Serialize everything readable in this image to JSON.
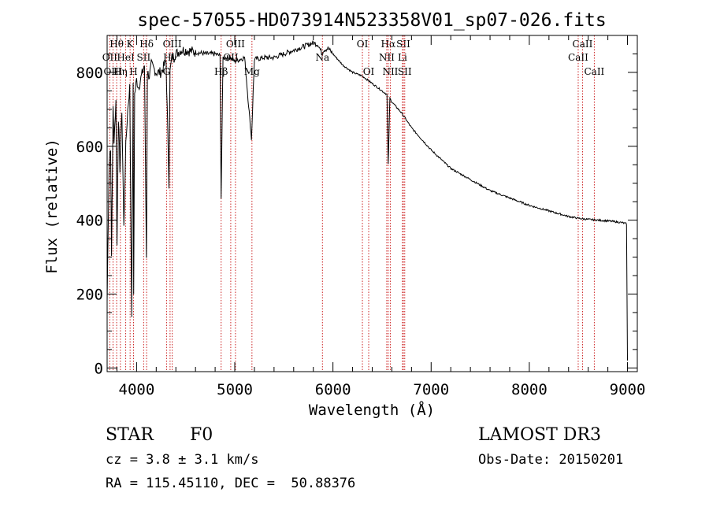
{
  "chart_data": {
    "type": "line",
    "title": "spec-57055-HD073914N523358V01_sp07-026.fits",
    "xlabel": "Wavelength (Å)",
    "ylabel": "Flux (relative)",
    "xlim": [
      3700,
      9100
    ],
    "ylim": [
      -10,
      900
    ],
    "xticks": [
      4000,
      5000,
      6000,
      7000,
      8000,
      9000
    ],
    "xtick_labels": [
      "4000",
      "5000",
      "6000",
      "7000",
      "8000",
      "9000"
    ],
    "yticks": [
      0,
      200,
      400,
      600,
      800
    ],
    "ytick_labels": [
      "0",
      "200",
      "400",
      "600",
      "800"
    ],
    "series": [
      {
        "name": "spectrum",
        "x": [
          3700,
          3720,
          3735,
          3745,
          3760,
          3770,
          3790,
          3800,
          3815,
          3830,
          3850,
          3870,
          3890,
          3910,
          3930,
          3950,
          3965,
          3970,
          3980,
          4000,
          4020,
          4050,
          4080,
          4100,
          4110,
          4130,
          4150,
          4200,
          4250,
          4300,
          4330,
          4340,
          4360,
          4400,
          4450,
          4500,
          4600,
          4700,
          4800,
          4850,
          4861,
          4880,
          4950,
          5000,
          5100,
          5170,
          5200,
          5300,
          5400,
          5500,
          5600,
          5700,
          5800,
          5850,
          5890,
          5900,
          5950,
          6000,
          6100,
          6200,
          6300,
          6400,
          6500,
          6550,
          6563,
          6580,
          6600,
          6700,
          6800,
          7000,
          7200,
          7400,
          7600,
          7800,
          8000,
          8200,
          8400,
          8500,
          8600,
          8700,
          8800,
          8900,
          8950,
          8990,
          9000
        ],
        "y": [
          180,
          560,
          600,
          300,
          700,
          620,
          720,
          330,
          680,
          540,
          700,
          380,
          600,
          700,
          760,
          150,
          760,
          200,
          740,
          780,
          760,
          790,
          820,
          300,
          800,
          790,
          820,
          800,
          800,
          830,
          500,
          800,
          840,
          850,
          860,
          860,
          855,
          850,
          850,
          845,
          460,
          840,
          840,
          830,
          840,
          620,
          835,
          840,
          840,
          850,
          860,
          870,
          880,
          875,
          850,
          860,
          865,
          850,
          820,
          800,
          790,
          770,
          750,
          740,
          550,
          730,
          720,
          690,
          650,
          590,
          540,
          510,
          480,
          460,
          440,
          425,
          410,
          405,
          402,
          400,
          398,
          395,
          393,
          390,
          20
        ]
      }
    ],
    "line_markers": [
      {
        "label": "Hθ",
        "wl": 3797,
        "row": 0
      },
      {
        "label": "OII",
        "wl": 3727,
        "row": 1
      },
      {
        "label": "OIII",
        "wl": 3760,
        "row": 2
      },
      {
        "label": "K",
        "wl": 3934,
        "row": 0
      },
      {
        "label": "HeI",
        "wl": 3889,
        "row": 1
      },
      {
        "label": "Hη",
        "wl": 3835,
        "row": 2
      },
      {
        "label": "Hδ",
        "wl": 4102,
        "row": 0
      },
      {
        "label": "SII",
        "wl": 4072,
        "row": 1
      },
      {
        "label": "H",
        "wl": 3969,
        "row": 2
      },
      {
        "label": "OIII",
        "wl": 4363,
        "row": 0
      },
      {
        "label": "Hγ",
        "wl": 4341,
        "row": 1
      },
      {
        "label": "G",
        "wl": 4305,
        "row": 2
      },
      {
        "label": "OIII",
        "wl": 5007,
        "row": 0
      },
      {
        "label": "OII",
        "wl": 4959,
        "row": 1
      },
      {
        "label": "Hβ",
        "wl": 4861,
        "row": 2
      },
      {
        "label": "Mg",
        "wl": 5175,
        "row": 2
      },
      {
        "label": "Na",
        "wl": 5893,
        "row": 1
      },
      {
        "label": "OI",
        "wl": 6300,
        "row": 0
      },
      {
        "label": "OI",
        "wl": 6364,
        "row": 2
      },
      {
        "label": "Hα",
        "wl": 6563,
        "row": 0
      },
      {
        "label": "SII",
        "wl": 6717,
        "row": 0
      },
      {
        "label": "NII",
        "wl": 6548,
        "row": 1
      },
      {
        "label": "Li",
        "wl": 6708,
        "row": 1
      },
      {
        "label": "NII",
        "wl": 6584,
        "row": 2
      },
      {
        "label": "SII",
        "wl": 6731,
        "row": 2
      },
      {
        "label": "CaII",
        "wl": 8542,
        "row": 0
      },
      {
        "label": "CaII",
        "wl": 8498,
        "row": 1
      },
      {
        "label": "CaII",
        "wl": 8662,
        "row": 2
      }
    ]
  },
  "info": {
    "object_type": "STAR",
    "subclass": "F0",
    "survey": "LAMOST DR3",
    "redshift": "cz = 3.8 ± 3.1 km/s",
    "obs_date": "Obs-Date: 20150201",
    "coords": "RA = 115.45110, DEC =  50.88376"
  }
}
